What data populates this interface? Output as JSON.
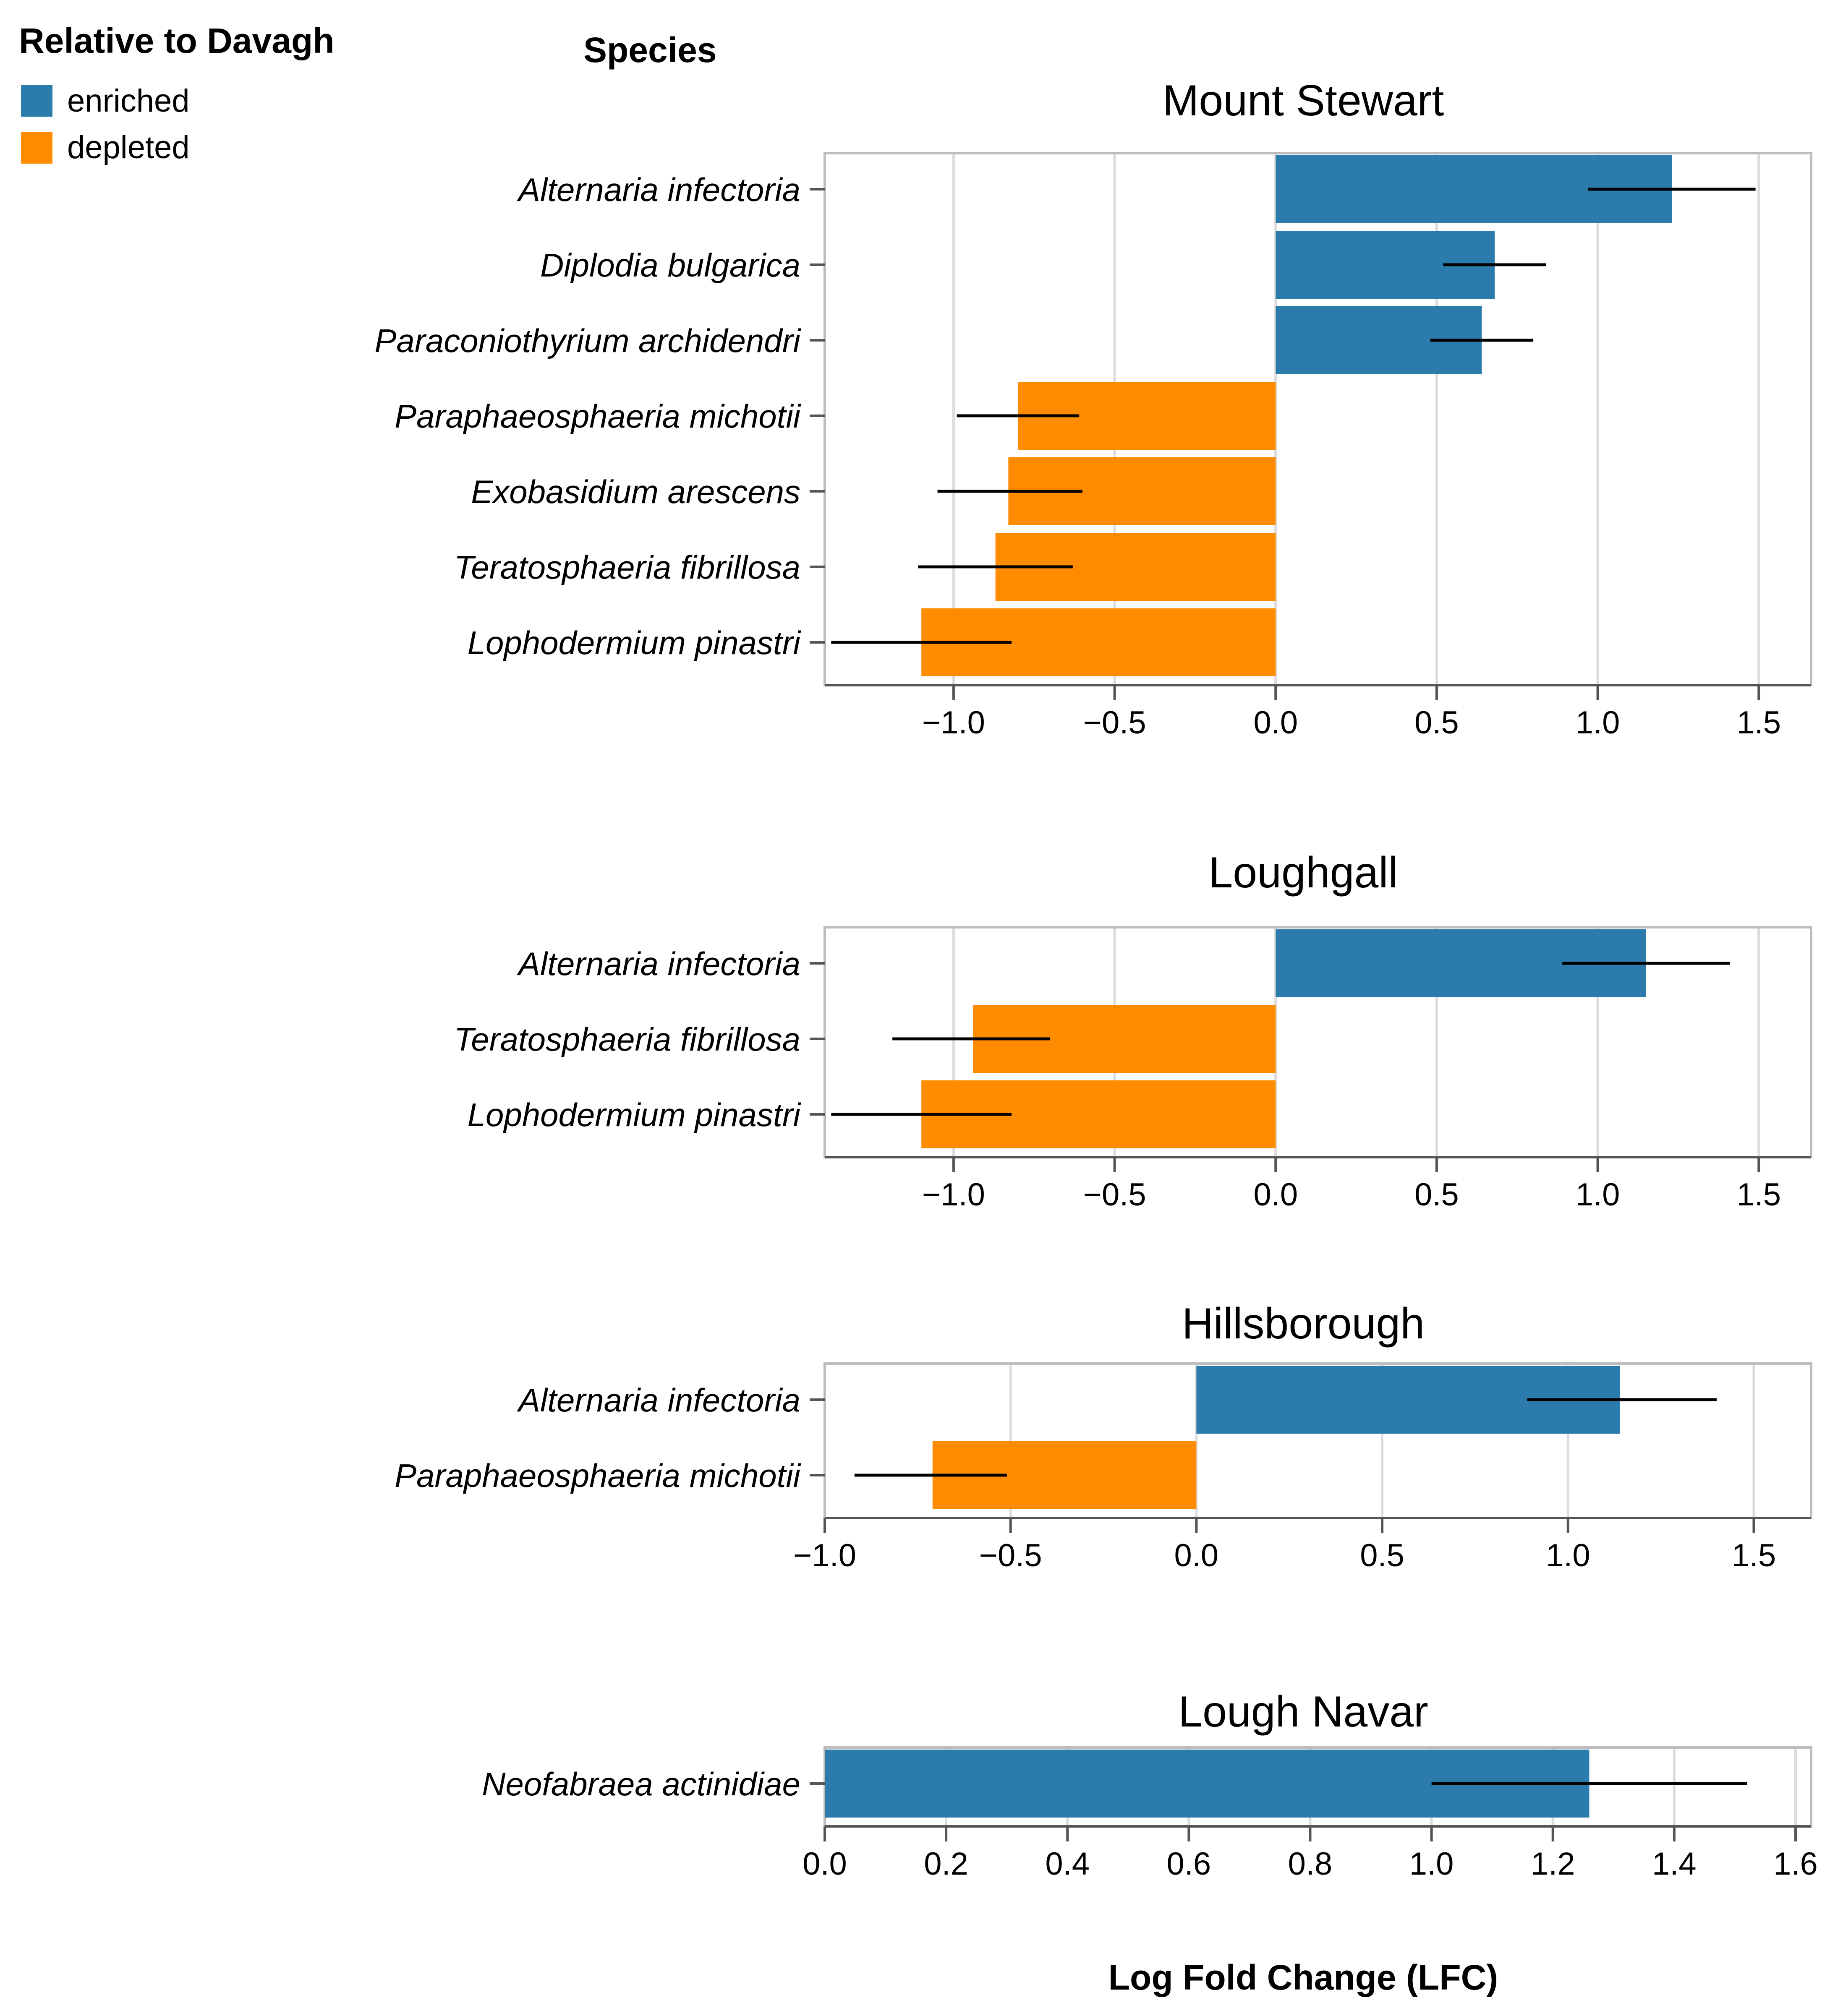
{
  "figure": {
    "legend_title": "Relative to Davagh",
    "y_header": "Species",
    "x_title": "Log Fold Change (LFC)"
  },
  "legend": [
    {
      "label": "enriched",
      "color": "#2b7bac"
    },
    {
      "label": "depleted",
      "color": "#ff8c00"
    }
  ],
  "chart_data": [
    {
      "type": "bar",
      "orientation": "horizontal",
      "title": "Mount Stewart",
      "xlabel": "Log Fold Change (LFC)",
      "ylabel": "Species",
      "xlim": [
        -1.4,
        1.6
      ],
      "xticks": [
        -1.0,
        -0.5,
        0.0,
        0.5,
        1.0,
        1.5
      ],
      "tick_labels": [
        "−1.0",
        "−0.5",
        "0.0",
        "0.5",
        "1.0",
        "1.5"
      ],
      "categories": [
        "Alternaria infectoria",
        "Diplodia bulgarica",
        "Paraconiothyrium archidendri",
        "Paraphaeosphaeria michotii",
        "Exobasidium arescens",
        "Teratosphaeria fibrillosa",
        "Lophodermium pinastri"
      ],
      "values": [
        1.23,
        0.68,
        0.64,
        -0.8,
        -0.83,
        -0.87,
        -1.1
      ],
      "error_low": [
        0.97,
        0.52,
        0.48,
        -0.99,
        -1.05,
        -1.11,
        -1.38
      ],
      "error_high": [
        1.49,
        0.84,
        0.8,
        -0.61,
        -0.6,
        -0.63,
        -0.82
      ],
      "status": [
        "enriched",
        "enriched",
        "enriched",
        "depleted",
        "depleted",
        "depleted",
        "depleted"
      ]
    },
    {
      "type": "bar",
      "orientation": "horizontal",
      "title": "Loughgall",
      "xlabel": "Log Fold Change (LFC)",
      "ylabel": "Species",
      "xlim": [
        -1.4,
        1.6
      ],
      "xticks": [
        -1.0,
        -0.5,
        0.0,
        0.5,
        1.0,
        1.5
      ],
      "tick_labels": [
        "−1.0",
        "−0.5",
        "0.0",
        "0.5",
        "1.0",
        "1.5"
      ],
      "categories": [
        "Alternaria infectoria",
        "Teratosphaeria fibrillosa",
        "Lophodermium pinastri"
      ],
      "values": [
        1.15,
        -0.94,
        -1.1
      ],
      "error_low": [
        0.89,
        -1.19,
        -1.38
      ],
      "error_high": [
        1.41,
        -0.7,
        -0.82
      ],
      "status": [
        "enriched",
        "depleted",
        "depleted"
      ]
    },
    {
      "type": "bar",
      "orientation": "horizontal",
      "title": "Hillsborough",
      "xlabel": "Log Fold Change (LFC)",
      "ylabel": "Species",
      "xlim": [
        -1.0,
        1.6
      ],
      "xticks": [
        -1.0,
        -0.5,
        0.0,
        0.5,
        1.0,
        1.5
      ],
      "tick_labels": [
        "−1.0",
        "−0.5",
        "0.0",
        "0.5",
        "1.0",
        "1.5"
      ],
      "categories": [
        "Alternaria infectoria",
        "Paraphaeosphaeria michotii"
      ],
      "values": [
        1.14,
        -0.71
      ],
      "error_low": [
        0.89,
        -0.92
      ],
      "error_high": [
        1.4,
        -0.51
      ],
      "status": [
        "enriched",
        "depleted"
      ]
    },
    {
      "type": "bar",
      "orientation": "horizontal",
      "title": "Lough Navar",
      "xlabel": "Log Fold Change (LFC)",
      "ylabel": "Species",
      "xlim": [
        0.0,
        1.6
      ],
      "xticks": [
        0.0,
        0.2,
        0.4,
        0.6,
        0.8,
        1.0,
        1.2,
        1.4,
        1.6
      ],
      "tick_labels": [
        "0.0",
        "0.2",
        "0.4",
        "0.6",
        "0.8",
        "1.0",
        "1.2",
        "1.4",
        "1.6"
      ],
      "categories": [
        "Neofabraea actinidiae"
      ],
      "values": [
        1.26
      ],
      "error_low": [
        1.0
      ],
      "error_high": [
        1.52
      ],
      "status": [
        "enriched"
      ]
    }
  ]
}
